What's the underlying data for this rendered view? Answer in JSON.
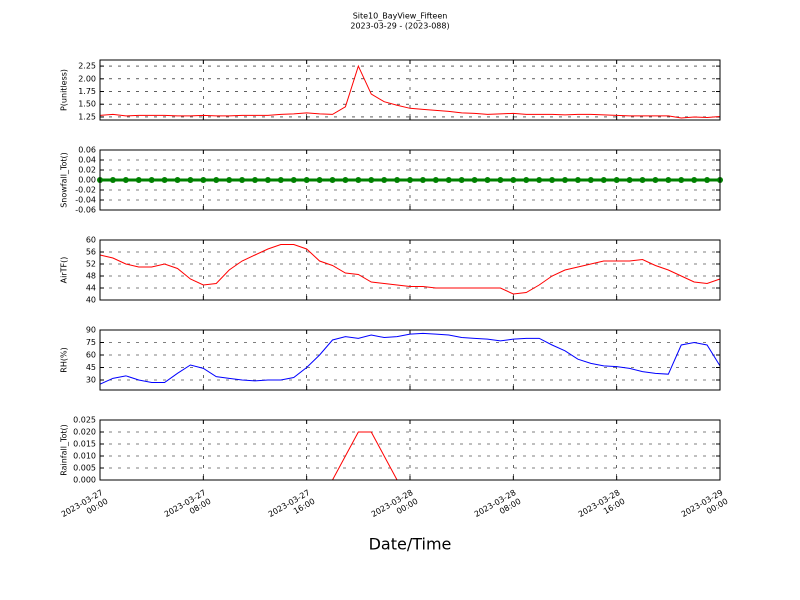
{
  "title": "Site10_BayView_Fifteen",
  "subtitle": "2023-03-29 - (2023-088)",
  "xlabel": "Date/Time",
  "xlim": [
    "2023-03-27 00:00",
    "2023-03-29 00:00"
  ],
  "xticks": [
    "2023-03-27 00:00",
    "2023-03-27 08:00",
    "2023-03-27 16:00",
    "2023-03-28 00:00",
    "2023-03-28 08:00",
    "2023-03-28 16:00",
    "2023-03-29 00:00"
  ],
  "x": [
    "2023-03-27 00:00",
    "2023-03-27 01:00",
    "2023-03-27 02:00",
    "2023-03-27 03:00",
    "2023-03-27 04:00",
    "2023-03-27 05:00",
    "2023-03-27 06:00",
    "2023-03-27 07:00",
    "2023-03-27 08:00",
    "2023-03-27 09:00",
    "2023-03-27 10:00",
    "2023-03-27 11:00",
    "2023-03-27 12:00",
    "2023-03-27 13:00",
    "2023-03-27 14:00",
    "2023-03-27 15:00",
    "2023-03-27 16:00",
    "2023-03-27 17:00",
    "2023-03-27 18:00",
    "2023-03-27 19:00",
    "2023-03-27 20:00",
    "2023-03-27 21:00",
    "2023-03-27 22:00",
    "2023-03-27 23:00",
    "2023-03-28 00:00",
    "2023-03-28 01:00",
    "2023-03-28 02:00",
    "2023-03-28 03:00",
    "2023-03-28 04:00",
    "2023-03-28 05:00",
    "2023-03-28 06:00",
    "2023-03-28 07:00",
    "2023-03-28 08:00",
    "2023-03-28 09:00",
    "2023-03-28 10:00",
    "2023-03-28 11:00",
    "2023-03-28 12:00",
    "2023-03-28 13:00",
    "2023-03-28 14:00",
    "2023-03-28 15:00",
    "2023-03-28 16:00",
    "2023-03-28 17:00",
    "2023-03-28 18:00",
    "2023-03-28 19:00",
    "2023-03-28 20:00",
    "2023-03-28 21:00",
    "2023-03-28 22:00",
    "2023-03-28 23:00",
    "2023-03-29 00:00"
  ],
  "chart_data": [
    {
      "type": "line",
      "ylabel": "P(unitless)",
      "ylim": [
        1.19,
        2.37
      ],
      "grid": true,
      "yticks": [
        {
          "value": 1.25,
          "label": "1.25"
        },
        {
          "value": 1.5,
          "label": "1.50"
        },
        {
          "value": 1.75,
          "label": "1.75"
        },
        {
          "value": 2.0,
          "label": "2.00"
        },
        {
          "value": 2.25,
          "label": "2.25"
        }
      ],
      "series": [
        {
          "color": "#ff0000",
          "values": [
            1.28,
            1.3,
            1.27,
            1.28,
            1.28,
            1.28,
            1.27,
            1.27,
            1.28,
            1.27,
            1.27,
            1.28,
            1.28,
            1.28,
            1.3,
            1.31,
            1.33,
            1.31,
            1.3,
            1.45,
            2.25,
            1.7,
            1.55,
            1.48,
            1.42,
            1.4,
            1.38,
            1.36,
            1.33,
            1.32,
            1.3,
            1.31,
            1.32,
            1.3,
            1.3,
            1.3,
            1.29,
            1.3,
            1.3,
            1.29,
            1.28,
            1.27,
            1.27,
            1.27,
            1.27,
            1.23,
            1.25,
            1.24,
            1.26
          ]
        }
      ]
    },
    {
      "type": "scatter",
      "ylabel": "Snowfall_Tot()",
      "ylim": [
        -0.06,
        0.06
      ],
      "grid": true,
      "yticks": [
        {
          "value": -0.06,
          "label": "-0.06"
        },
        {
          "value": -0.04,
          "label": "-0.04"
        },
        {
          "value": -0.02,
          "label": "-0.02"
        },
        {
          "value": 0,
          "label": "0.00"
        },
        {
          "value": 0.02,
          "label": "0.02"
        },
        {
          "value": 0.04,
          "label": "0.04"
        },
        {
          "value": 0.06,
          "label": "0.06"
        }
      ],
      "series": [
        {
          "color": "#008000",
          "values": [
            0,
            0,
            0,
            0,
            0,
            0,
            0,
            0,
            0,
            0,
            0,
            0,
            0,
            0,
            0,
            0,
            0,
            0,
            0,
            0,
            0,
            0,
            0,
            0,
            0,
            0,
            0,
            0,
            0,
            0,
            0,
            0,
            0,
            0,
            0,
            0,
            0,
            0,
            0,
            0,
            0,
            0,
            0,
            0,
            0,
            0,
            0,
            0,
            0
          ]
        }
      ]
    },
    {
      "type": "line",
      "ylabel": "AirTF()",
      "ylim": [
        40,
        60
      ],
      "grid": true,
      "yticks": [
        40,
        44,
        48,
        52,
        56,
        60
      ],
      "series": [
        {
          "color": "#ff0000",
          "values": [
            55,
            54,
            52,
            51,
            51,
            52,
            50.5,
            47,
            45,
            45.5,
            50,
            53,
            55,
            57,
            58.5,
            58.5,
            57,
            53,
            51.5,
            49,
            48.5,
            46,
            45.5,
            45,
            44.5,
            44.5,
            44,
            44,
            44,
            44,
            44,
            44,
            42,
            42.5,
            45,
            48,
            50,
            51,
            52,
            53,
            53,
            53,
            53.5,
            51.5,
            50,
            48,
            46,
            45.5,
            47
          ]
        }
      ]
    },
    {
      "type": "line",
      "ylabel": "RH(%)",
      "ylim": [
        18,
        90
      ],
      "grid": true,
      "yticks": [
        30,
        45,
        60,
        75,
        90
      ],
      "series": [
        {
          "color": "#0000ff",
          "values": [
            25,
            32,
            35,
            30,
            27,
            27,
            38,
            48,
            44,
            34,
            32,
            30,
            29,
            30,
            30,
            33,
            45,
            60,
            78,
            82,
            80,
            84,
            81,
            82,
            85,
            86,
            85,
            84,
            81,
            80,
            79,
            77,
            79,
            80,
            80,
            72,
            65,
            55,
            50,
            47,
            46,
            44,
            40,
            38,
            37,
            72,
            75,
            72,
            47
          ]
        }
      ]
    },
    {
      "type": "line",
      "ylabel": "Rainfall_Tot()",
      "ylim": [
        0,
        0.025
      ],
      "grid": true,
      "yticks": [
        {
          "value": 0,
          "label": "0.000"
        },
        {
          "value": 0.005,
          "label": "0.005"
        },
        {
          "value": 0.01,
          "label": "0.010"
        },
        {
          "value": 0.015,
          "label": "0.015"
        },
        {
          "value": 0.02,
          "label": "0.020"
        },
        {
          "value": 0.025,
          "label": "0.025"
        }
      ],
      "series": [
        {
          "color": "#ff0000",
          "values": [
            0,
            0,
            0,
            0,
            0,
            0,
            0,
            0,
            0,
            0,
            0,
            0,
            0,
            0,
            0,
            0,
            0,
            0,
            0,
            0.01,
            0.02,
            0.02,
            0.01,
            0,
            0,
            0,
            0,
            0,
            0,
            0,
            0,
            0,
            0,
            0,
            0,
            0,
            0,
            0,
            0,
            0,
            0,
            0,
            0,
            0,
            0,
            0,
            0,
            0,
            0
          ]
        }
      ]
    }
  ]
}
